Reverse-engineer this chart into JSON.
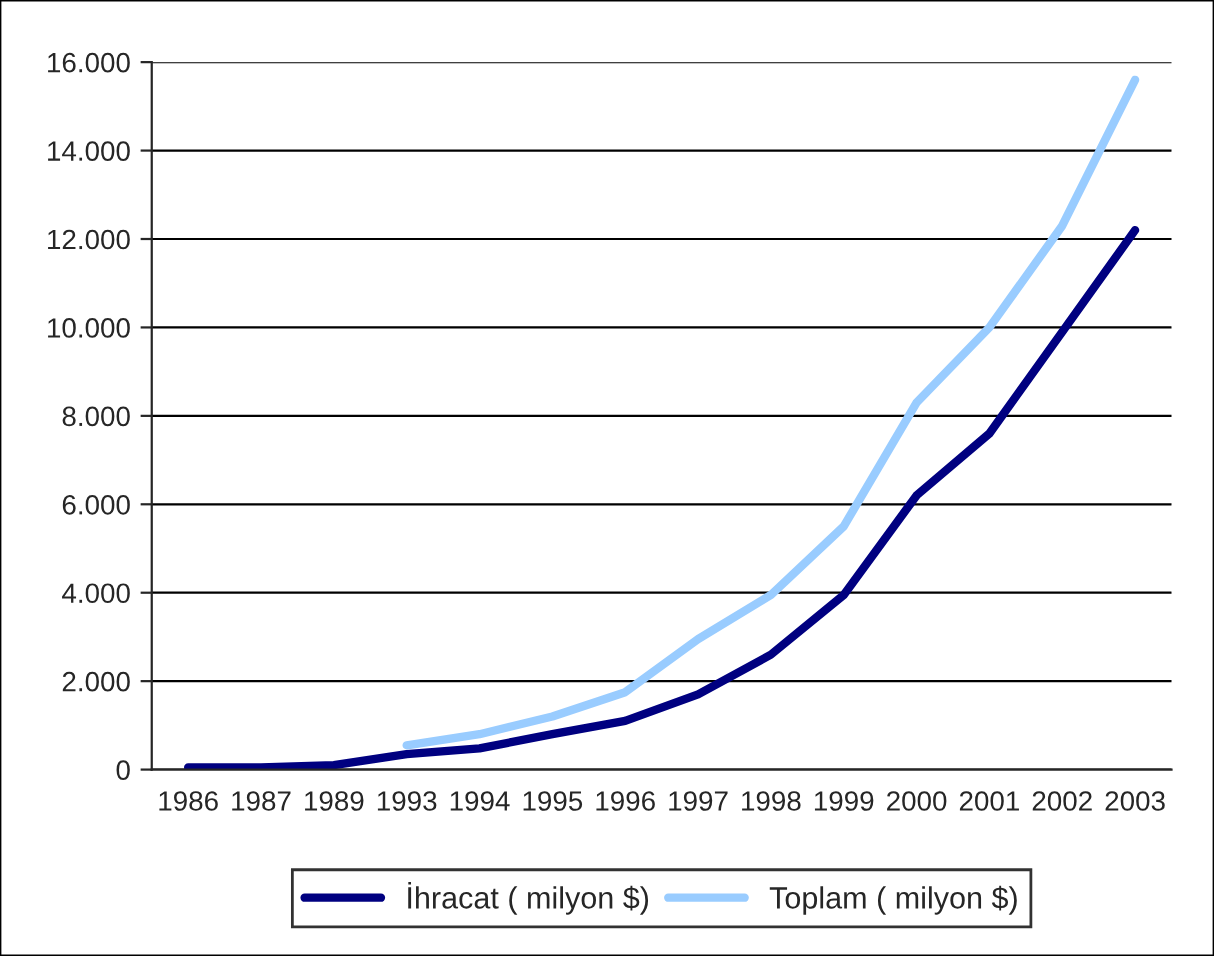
{
  "chart_data": {
    "type": "line",
    "categories": [
      "1986",
      "1987",
      "1989",
      "1993",
      "1994",
      "1995",
      "1996",
      "1997",
      "1998",
      "1999",
      "2000",
      "2001",
      "2002",
      "2003"
    ],
    "series": [
      {
        "name": "İhracat ( milyon $)",
        "color": "#000080",
        "values": [
          50,
          50,
          100,
          350,
          480,
          800,
          1100,
          1700,
          2600,
          3950,
          6200,
          7600,
          9900,
          12200
        ]
      },
      {
        "name": "Toplam ( milyon $)",
        "color": "#99ccff",
        "values": [
          null,
          null,
          null,
          550,
          800,
          1200,
          1750,
          2950,
          3950,
          5500,
          8300,
          10000,
          12300,
          15600
        ]
      }
    ],
    "ylim": [
      0,
      16000
    ],
    "yticks": [
      0,
      {
        "value": 2000,
        "label": "2.000"
      },
      {
        "value": 4000,
        "label": "4.000"
      },
      {
        "value": 6000,
        "label": "6.000"
      },
      {
        "value": 8000,
        "label": "8.000"
      },
      {
        "value": 10000,
        "label": "10.000"
      },
      {
        "value": 12000,
        "label": "12.000"
      },
      {
        "value": 14000,
        "label": "14.000"
      },
      {
        "value": 16000,
        "label": "16.000"
      }
    ],
    "grid": "y",
    "legend": "bottom",
    "marker": "none",
    "line_style": "solid"
  }
}
